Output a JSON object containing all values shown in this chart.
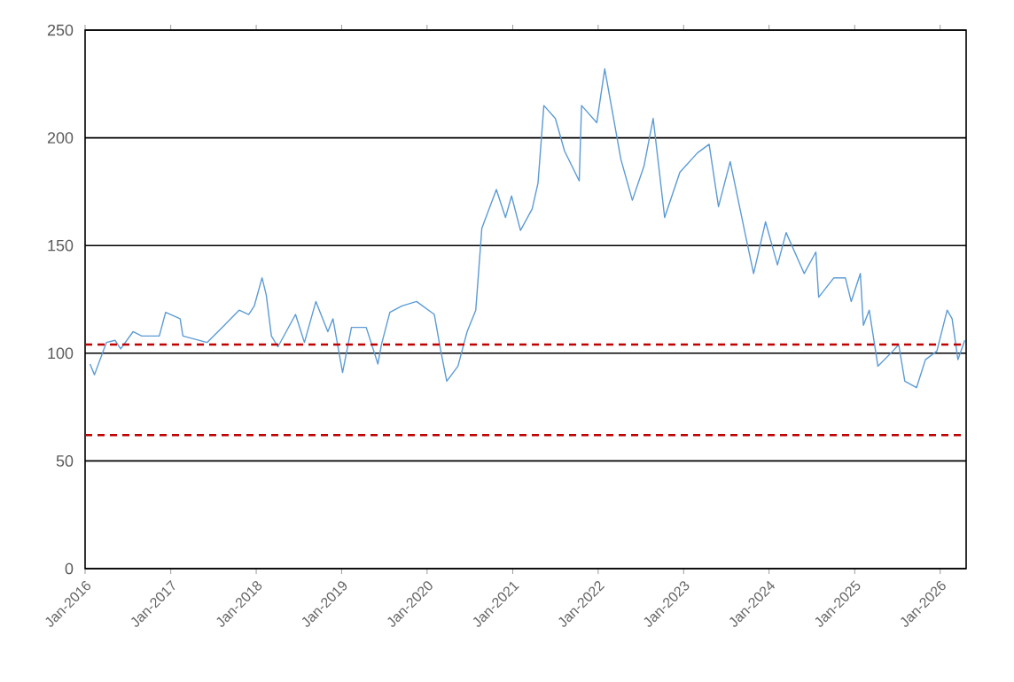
{
  "chart_data": {
    "type": "line",
    "x": [
      "2016-01-22",
      "2016-02-10",
      "2016-04-01",
      "2016-05-08",
      "2016-06-01",
      "2016-07-24",
      "2016-08-30",
      "2016-11-13",
      "2016-12-10",
      "2017-02-10",
      "2017-02-22",
      "2017-06-05",
      "2017-08-18",
      "2017-10-20",
      "2017-11-30",
      "2017-12-24",
      "2018-01-26",
      "2018-02-13",
      "2018-03-07",
      "2018-04-04",
      "2018-06-18",
      "2018-07-26",
      "2018-09-13",
      "2018-11-03",
      "2018-11-25",
      "2019-01-05",
      "2019-02-12",
      "2019-04-16",
      "2019-06-05",
      "2019-06-20",
      "2019-07-26",
      "2019-09-16",
      "2019-11-17",
      "2020-02-01",
      "2020-02-27",
      "2020-03-25",
      "2020-05-12",
      "2020-06-20",
      "2020-07-27",
      "2020-08-22",
      "2020-10-23",
      "2020-12-01",
      "2020-12-27",
      "2021-02-03",
      "2021-03-25",
      "2021-04-19",
      "2021-05-14",
      "2021-07-02",
      "2021-08-10",
      "2021-10-12",
      "2021-10-22",
      "2021-12-26",
      "2022-01-29",
      "2022-04-08",
      "2022-05-27",
      "2022-07-16",
      "2022-08-24",
      "2022-10-12",
      "2022-12-16",
      "2023-03-01",
      "2023-04-20",
      "2023-05-30",
      "2023-07-19",
      "2023-09-20",
      "2023-10-27",
      "2023-12-17",
      "2024-02-06",
      "2024-03-14",
      "2024-05-30",
      "2024-07-19",
      "2024-07-31",
      "2024-10-04",
      "2024-11-22",
      "2024-12-17",
      "2025-01-25",
      "2025-02-07",
      "2025-03-04",
      "2025-04-10",
      "2025-06-13",
      "2025-07-08",
      "2025-08-03",
      "2025-09-22",
      "2025-10-30",
      "2025-12-18",
      "2026-01-31",
      "2026-02-21",
      "2026-03-18",
      "2026-04-16"
    ],
    "series": [
      {
        "color": "#5b9bd5",
        "values": [
          95,
          90,
          105,
          106,
          102,
          110,
          108,
          108,
          119,
          116,
          108,
          105,
          113,
          120,
          118,
          122,
          135,
          127,
          108,
          103,
          118,
          105,
          124,
          110,
          116,
          91,
          112,
          112,
          95,
          104,
          119,
          122,
          124,
          118,
          102,
          87,
          94,
          110,
          120,
          158,
          176,
          163,
          173,
          157,
          167,
          179,
          215,
          209,
          194,
          180,
          215,
          207,
          232,
          190,
          171,
          187,
          209,
          163,
          184,
          193,
          197,
          168,
          189,
          156,
          137,
          161,
          141,
          156,
          137,
          147,
          126,
          135,
          135,
          124,
          137,
          113,
          120,
          94,
          101,
          104,
          87,
          84,
          97,
          101,
          120,
          116,
          97,
          106
        ]
      }
    ],
    "xlim": [
      "2016-01-01",
      "2026-04-22"
    ],
    "xticks": [
      {
        "value": "2016-01-01",
        "label": "Jan-2016"
      },
      {
        "value": "2017-01-01",
        "label": "Jan-2017"
      },
      {
        "value": "2018-01-01",
        "label": "Jan-2018"
      },
      {
        "value": "2019-01-01",
        "label": "Jan-2019"
      },
      {
        "value": "2020-01-01",
        "label": "Jan-2020"
      },
      {
        "value": "2021-01-01",
        "label": "Jan-2021"
      },
      {
        "value": "2022-01-01",
        "label": "Jan-2022"
      },
      {
        "value": "2023-01-01",
        "label": "Jan-2023"
      },
      {
        "value": "2024-01-01",
        "label": "Jan-2024"
      },
      {
        "value": "2025-01-01",
        "label": "Jan-2025"
      },
      {
        "value": "2026-01-01",
        "label": "Jan-2026"
      }
    ],
    "ylim": [
      0,
      250
    ],
    "yticks": [
      0,
      50,
      100,
      150,
      200,
      250
    ],
    "grid": "y",
    "ref_lines": [
      {
        "axis": "y",
        "value": 104,
        "color": "#c00000",
        "line_style": "dashed"
      },
      {
        "axis": "y",
        "value": 62,
        "color": "#c00000",
        "line_style": "dashed"
      }
    ]
  }
}
